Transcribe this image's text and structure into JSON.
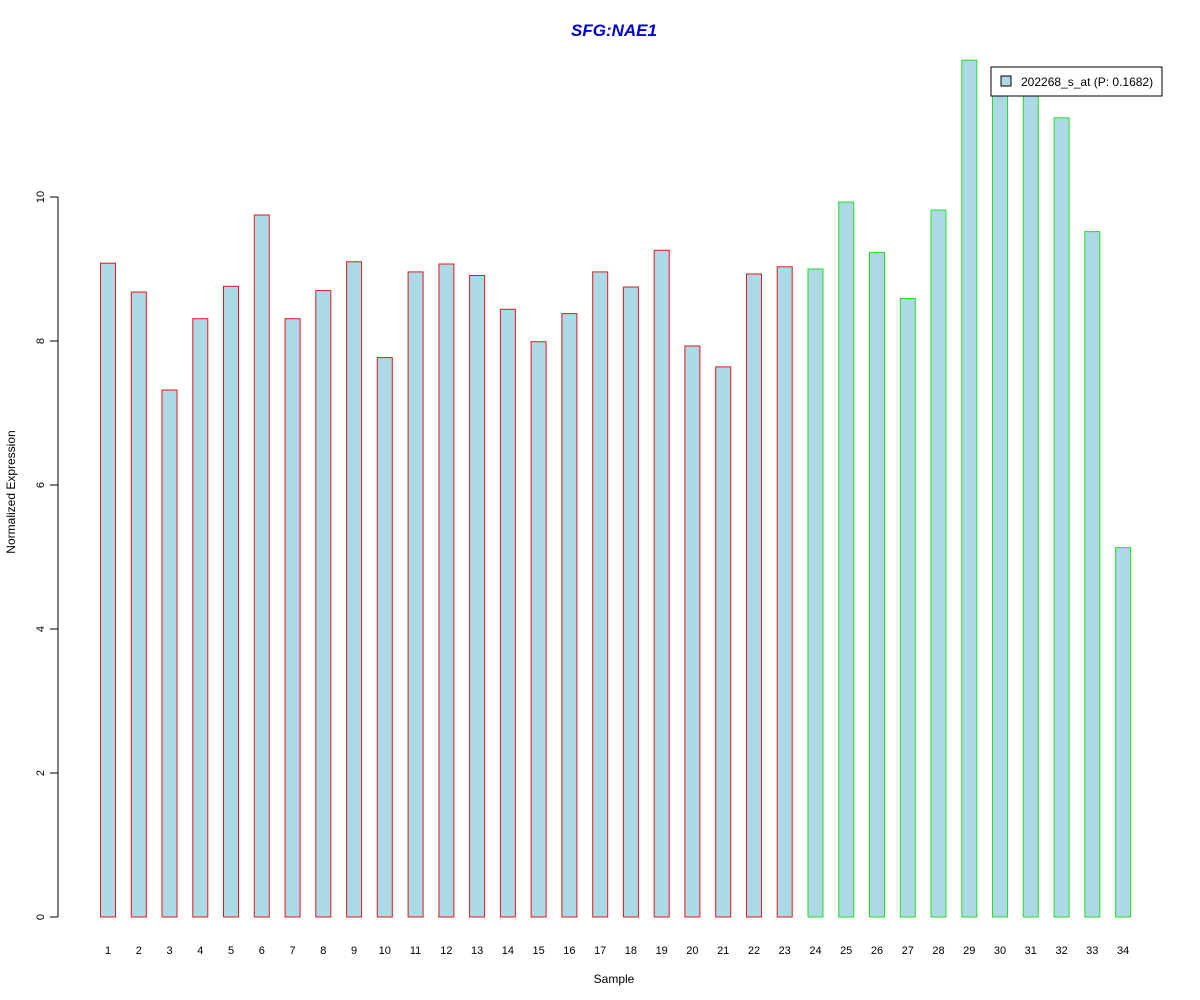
{
  "chart_data": {
    "type": "bar",
    "title": "SFG:NAE1",
    "xlabel": "Sample",
    "ylabel": "Normalized Expression",
    "categories": [
      "1",
      "2",
      "3",
      "4",
      "5",
      "6",
      "7",
      "8",
      "9",
      "10",
      "11",
      "12",
      "13",
      "14",
      "15",
      "16",
      "17",
      "18",
      "19",
      "20",
      "21",
      "22",
      "23",
      "24",
      "25",
      "26",
      "27",
      "28",
      "29",
      "30",
      "31",
      "32",
      "33",
      "34"
    ],
    "series": [
      {
        "name": "202268_s_at (P: 0.1682)",
        "values": [
          9.08,
          8.68,
          7.32,
          8.31,
          8.76,
          9.75,
          8.31,
          8.7,
          9.1,
          7.77,
          8.96,
          9.07,
          8.91,
          8.44,
          7.99,
          8.38,
          8.96,
          8.75,
          9.26,
          7.93,
          7.64,
          8.93,
          9.03,
          9.0,
          9.93,
          9.23,
          8.59,
          9.82,
          11.9,
          11.5,
          11.45,
          11.1,
          9.52,
          5.13
        ]
      }
    ],
    "groups": [
      {
        "from": 1,
        "to": 23,
        "border_color": "#e0191b"
      },
      {
        "from": 24,
        "to": 34,
        "border_color": "#22e022"
      }
    ],
    "yticks": [
      0,
      2,
      4,
      6,
      8,
      10
    ],
    "ylim": [
      0,
      12
    ],
    "bar_fill": "#add8e6",
    "title_color": "#0000cc",
    "legend_position": "top-right",
    "grid": false
  }
}
